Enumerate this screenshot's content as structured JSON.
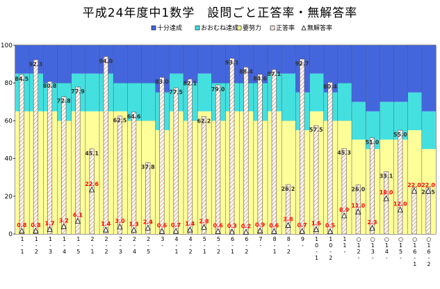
{
  "chart_data": {
    "type": "bar",
    "title": "平成24年度中1数学　設問ごと正答率・無解答率",
    "ylim": [
      0,
      100
    ],
    "yticks": [
      0,
      20,
      40,
      60,
      80,
      100
    ],
    "legend": [
      {
        "name": "十分達成",
        "color": "#4466dd"
      },
      {
        "name": "おおむね達成",
        "color": "#44e0e0"
      },
      {
        "name": "要努力",
        "color": "#ffff99"
      },
      {
        "name": "正答率",
        "color": "#ffffff"
      },
      {
        "name": "無解答率",
        "color": "#ffffff"
      }
    ],
    "categories": [
      "1-1",
      "1-2",
      "1-3",
      "1-4",
      "1-5",
      "2-1",
      "2-2",
      "2-3",
      "2-4",
      "2-5",
      "3",
      "4-1",
      "4-2",
      "5-1",
      "5-2",
      "6-1",
      "6-2",
      "7",
      "8-1",
      "8-2",
      "9",
      "10-1",
      "10-2",
      "11",
      "○12",
      "○13",
      "○14",
      "○15",
      "○16-1",
      "○16-2"
    ],
    "category_labels": [
      [
        "1",
        "-",
        "1"
      ],
      [
        "1",
        "-",
        "2"
      ],
      [
        "1",
        "-",
        "3"
      ],
      [
        "1",
        "-",
        "4"
      ],
      [
        "1",
        "-",
        "5"
      ],
      [
        "2",
        "-",
        "1"
      ],
      [
        "2",
        "-",
        "2"
      ],
      [
        "2",
        "-",
        "3"
      ],
      [
        "2",
        "-",
        "4"
      ],
      [
        "2",
        "-",
        "5"
      ],
      [
        "3",
        "-"
      ],
      [
        "4",
        "-",
        "1"
      ],
      [
        "4",
        "-",
        "2"
      ],
      [
        "5",
        "-",
        "1"
      ],
      [
        "5",
        "-",
        "2"
      ],
      [
        "6",
        "-",
        "1"
      ],
      [
        "6",
        "-",
        "2"
      ],
      [
        "7",
        "-"
      ],
      [
        "8",
        "-",
        "1"
      ],
      [
        "8",
        "-",
        "2"
      ],
      [
        "9",
        "-"
      ],
      [
        "1",
        "0",
        "-",
        "1"
      ],
      [
        "1",
        "0",
        "-",
        "2"
      ],
      [
        "1",
        "1",
        "-"
      ],
      [
        "○",
        "1",
        "2",
        "-"
      ],
      [
        "○",
        "1",
        "3",
        "-"
      ],
      [
        "○",
        "1",
        "4",
        "-"
      ],
      [
        "○",
        "1",
        "5",
        "-"
      ],
      [
        "○",
        "1",
        "6",
        "-",
        "1"
      ],
      [
        "○",
        "1",
        "6",
        "-",
        "2"
      ]
    ],
    "yoryoku_upper": [
      65,
      65,
      65,
      60,
      65,
      65,
      65,
      65,
      60,
      60,
      55,
      65,
      60,
      65,
      60,
      65,
      65,
      60,
      65,
      60,
      55,
      65,
      60,
      60,
      50,
      45,
      50,
      50,
      55,
      45
    ],
    "ookumu_upper": [
      85,
      85,
      80,
      80,
      85,
      85,
      85,
      80,
      80,
      80,
      75,
      85,
      80,
      85,
      80,
      80,
      80,
      80,
      85,
      85,
      75,
      85,
      75,
      80,
      70,
      65,
      70,
      70,
      75,
      65
    ],
    "seitou": [
      84.5,
      92.3,
      80.8,
      72.8,
      77.9,
      45.1,
      94.0,
      62.5,
      64.6,
      37.8,
      83.0,
      77.5,
      82.1,
      62.2,
      79.0,
      93.1,
      88.4,
      84.6,
      87.1,
      26.2,
      92.7,
      57.5,
      80.4,
      45.3,
      26.0,
      51.0,
      33.1,
      55.0,
      24.5,
      24.5
    ],
    "seitou_labels": [
      "84.5",
      "92.3",
      "80.8",
      "72.8",
      "77.9",
      "45.1",
      "94.0",
      "62.5",
      "64.6",
      "37.8",
      "83.0",
      "77.5",
      "82.1",
      "62.2",
      "79.0",
      "93.1",
      "88.4",
      "84.6",
      "87.1",
      "26.2",
      "92.7",
      "57.5",
      "80.4",
      "45.3",
      "26.0",
      "51.0",
      "33.1",
      "55.0",
      "",
      "24.5"
    ],
    "mukaitou": [
      0.8,
      0.8,
      1.7,
      3.2,
      6.1,
      22.6,
      1.4,
      3.0,
      1.3,
      2.4,
      0.6,
      0.7,
      1.4,
      2.8,
      0.6,
      0.3,
      0.2,
      0.9,
      0.6,
      3.8,
      0.7,
      1.6,
      0.5,
      8.9,
      11.0,
      2.3,
      18.0,
      12.0,
      22.0,
      22.0
    ],
    "mukaitou_labels": [
      "0.8",
      "0.8",
      "1.7",
      "3.2",
      "6.1",
      "22.6",
      "1.4",
      "3.0",
      "1.3",
      "2.4",
      "0.6",
      "0.7",
      "1.4",
      "2.8",
      "0.6",
      "0.3",
      "0.2",
      "0.9",
      "0.6",
      "3.8",
      "0.7",
      "1.6",
      "0.5",
      "8.9",
      "11.0",
      "2.3",
      "18.0",
      "12.0",
      "22.0",
      "22.0"
    ]
  }
}
